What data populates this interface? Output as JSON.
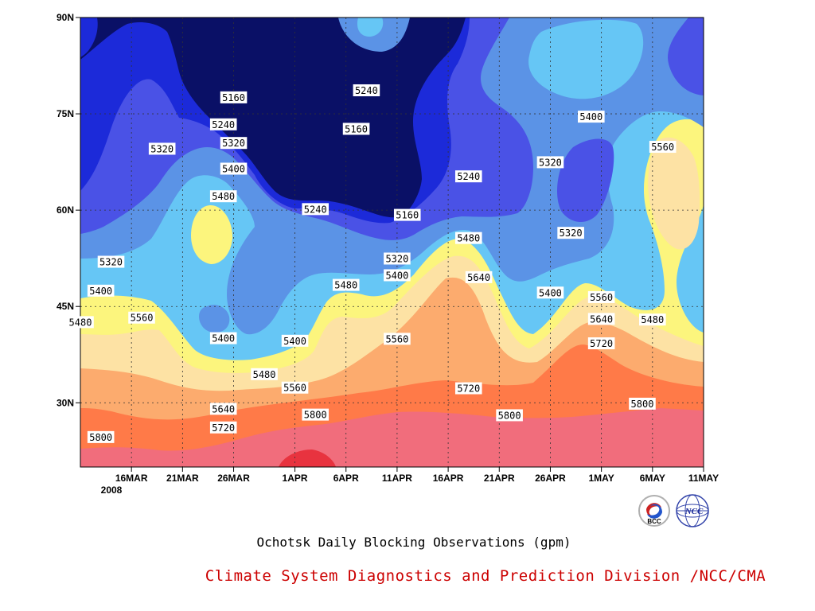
{
  "chart_data": {
    "type": "heatmap",
    "subtype": "filled contour (time-latitude)",
    "title": "Ochotsk Daily Blocking Observations (gpm)",
    "credit": "Climate System Diagnostics and Prediction Division /NCC/CMA",
    "x_ticks": [
      "16MAR",
      "21MAR",
      "26MAR",
      "1APR",
      "6APR",
      "11APR",
      "16APR",
      "21APR",
      "26APR",
      "1MAY",
      "6MAY",
      "11MAY"
    ],
    "x_year_label": "2008",
    "y_ticks": [
      "90N",
      "75N",
      "60N",
      "45N",
      "30N"
    ],
    "xlim": [
      "2008-03-11",
      "2008-05-11"
    ],
    "ylim": [
      20,
      90
    ],
    "units": "gpm",
    "grid": true,
    "contour_levels": [
      5080,
      5160,
      5240,
      5320,
      5400,
      5480,
      5560,
      5640,
      5720,
      5800,
      5880
    ],
    "colors": [
      "#0a1066",
      "#1c2ad9",
      "#4a52e6",
      "#5b93e6",
      "#66c6f5",
      "#fcf57d",
      "#fde2a4",
      "#fcab6e",
      "#ff7a48",
      "#f16d7c",
      "#e8333f"
    ],
    "contour_labels": [
      {
        "text": "5160",
        "date": "2008-03-26",
        "lat": 77.5
      },
      {
        "text": "5240",
        "date": "2008-03-25",
        "lat": 73.3
      },
      {
        "text": "5320",
        "date": "2008-03-19",
        "lat": 69.5
      },
      {
        "text": "5320",
        "date": "2008-03-26",
        "lat": 70.4
      },
      {
        "text": "5400",
        "date": "2008-03-26",
        "lat": 66.4
      },
      {
        "text": "5480",
        "date": "2008-03-25",
        "lat": 62.1
      },
      {
        "text": "5320",
        "date": "2008-03-14",
        "lat": 51.9
      },
      {
        "text": "5400",
        "date": "2008-03-13",
        "lat": 47.4
      },
      {
        "text": "5480",
        "date": "2008-03-11",
        "lat": 42.5
      },
      {
        "text": "5560",
        "date": "2008-03-17",
        "lat": 43.2
      },
      {
        "text": "5400",
        "date": "2008-03-25",
        "lat": 40.0
      },
      {
        "text": "5400",
        "date": "2008-04-01",
        "lat": 39.6
      },
      {
        "text": "5480",
        "date": "2008-03-29",
        "lat": 34.4
      },
      {
        "text": "5560",
        "date": "2008-04-01",
        "lat": 32.3
      },
      {
        "text": "5640",
        "date": "2008-03-25",
        "lat": 29.0
      },
      {
        "text": "5720",
        "date": "2008-03-25",
        "lat": 26.1
      },
      {
        "text": "5800",
        "date": "2008-03-13",
        "lat": 24.6
      },
      {
        "text": "5800",
        "date": "2008-04-03",
        "lat": 28.1
      },
      {
        "text": "5240",
        "date": "2008-04-08",
        "lat": 78.6
      },
      {
        "text": "5160",
        "date": "2008-04-07",
        "lat": 72.6
      },
      {
        "text": "5240",
        "date": "2008-04-03",
        "lat": 60.1
      },
      {
        "text": "5160",
        "date": "2008-04-12",
        "lat": 59.2
      },
      {
        "text": "5320",
        "date": "2008-04-11",
        "lat": 52.4
      },
      {
        "text": "5400",
        "date": "2008-04-11",
        "lat": 49.8
      },
      {
        "text": "5480",
        "date": "2008-04-06",
        "lat": 48.3
      },
      {
        "text": "5560",
        "date": "2008-04-11",
        "lat": 39.9
      },
      {
        "text": "5240",
        "date": "2008-04-18",
        "lat": 65.2
      },
      {
        "text": "5480",
        "date": "2008-04-18",
        "lat": 55.6
      },
      {
        "text": "5640",
        "date": "2008-04-19",
        "lat": 49.5
      },
      {
        "text": "5720",
        "date": "2008-04-18",
        "lat": 32.2
      },
      {
        "text": "5800",
        "date": "2008-04-22",
        "lat": 28.0
      },
      {
        "text": "5320",
        "date": "2008-04-26",
        "lat": 67.4
      },
      {
        "text": "5320",
        "date": "2008-04-28",
        "lat": 56.4
      },
      {
        "text": "5400",
        "date": "2008-04-30",
        "lat": 74.5
      },
      {
        "text": "5400",
        "date": "2008-04-26",
        "lat": 47.1
      },
      {
        "text": "5560",
        "date": "2008-05-01",
        "lat": 46.4
      },
      {
        "text": "5640",
        "date": "2008-05-01",
        "lat": 43.0
      },
      {
        "text": "5720",
        "date": "2008-05-01",
        "lat": 39.2
      },
      {
        "text": "5560",
        "date": "2008-05-07",
        "lat": 69.8
      },
      {
        "text": "5480",
        "date": "2008-05-06",
        "lat": 42.9
      },
      {
        "text": "5800",
        "date": "2008-05-05",
        "lat": 29.8
      }
    ]
  }
}
